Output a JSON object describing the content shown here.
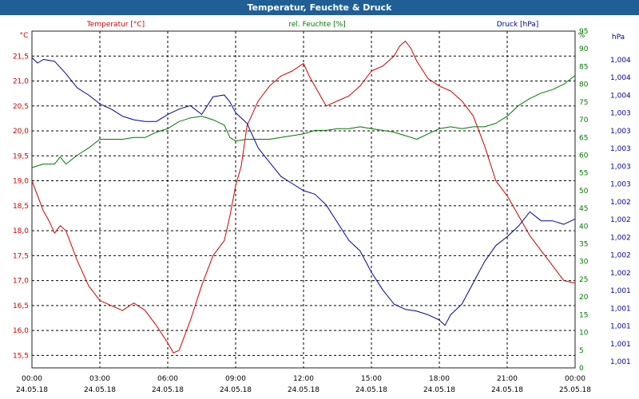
{
  "window": {
    "title": "Temperatur, Feuchte & Druck"
  },
  "chart_data": {
    "type": "line",
    "title": "Temperatur, Feuchte & Druck",
    "x_ticks": [
      {
        "time": "00:00",
        "date": "24.05.18"
      },
      {
        "time": "03:00",
        "date": "24.05.18"
      },
      {
        "time": "06:00",
        "date": "24.05.18"
      },
      {
        "time": "09:00",
        "date": "24.05.18"
      },
      {
        "time": "12:00",
        "date": "24.05.18"
      },
      {
        "time": "15:00",
        "date": "24.05.18"
      },
      {
        "time": "18:00",
        "date": "24.05.18"
      },
      {
        "time": "21:00",
        "date": "24.05.18"
      },
      {
        "time": "00:00",
        "date": "25.05.18"
      }
    ],
    "xlim_hours": [
      0,
      24
    ],
    "axes": {
      "temperature": {
        "label": "Temperatur [°C]",
        "unit": "°C",
        "color": "#cc0000",
        "ylim": [
          15.25,
          22.0
        ],
        "ticks": [
          "15,5",
          "16,0",
          "16,5",
          "17,0",
          "17,5",
          "18,0",
          "18,5",
          "19,0",
          "19,5",
          "20,0",
          "20,5",
          "21,0",
          "21,5"
        ]
      },
      "humidity": {
        "label": "rel. Feuchte [%]",
        "unit": "%",
        "color": "#007700",
        "ylim": [
          0,
          95
        ],
        "ticks": [
          "0",
          "5",
          "10",
          "15",
          "20",
          "25",
          "30",
          "35",
          "40",
          "45",
          "50",
          "55",
          "60",
          "65",
          "70",
          "75",
          "80",
          "85",
          "90",
          "95"
        ]
      },
      "pressure": {
        "label": "Druck [hPa]",
        "unit": "hPa",
        "color": "#000099",
        "ticks": [
          "1,001",
          "1,001",
          "1,001",
          "1,001",
          "1,001",
          "1,002",
          "1,002",
          "1,002",
          "1,002",
          "1,002",
          "1,003",
          "1,003",
          "1,003",
          "1,003",
          "1,003",
          "1,004",
          "1,004",
          "1,004"
        ]
      }
    },
    "grid": true,
    "grid_style": "dashed",
    "series": [
      {
        "name": "Temperatur [°C]",
        "axis": "temperature",
        "color": "#cc0000",
        "x": [
          0,
          0.25,
          0.5,
          0.75,
          1.0,
          1.25,
          1.5,
          1.75,
          2.0,
          2.5,
          3.0,
          3.5,
          4.0,
          4.5,
          5.0,
          5.5,
          6.0,
          6.25,
          6.5,
          7.0,
          7.5,
          8.0,
          8.5,
          8.75,
          9.0,
          9.25,
          9.5,
          10.0,
          10.5,
          11.0,
          11.5,
          12.0,
          12.25,
          12.5,
          13.0,
          13.5,
          14.0,
          14.5,
          15.0,
          15.5,
          16.0,
          16.25,
          16.5,
          16.75,
          17.0,
          17.5,
          18.0,
          18.5,
          19.0,
          19.5,
          20.0,
          20.5,
          21.0,
          21.5,
          22.0,
          22.5,
          23.0,
          23.5,
          24.0
        ],
        "values": [
          19.0,
          18.7,
          18.4,
          18.2,
          17.95,
          18.1,
          18.0,
          17.7,
          17.4,
          16.9,
          16.6,
          16.5,
          16.4,
          16.55,
          16.4,
          16.1,
          15.75,
          15.55,
          15.6,
          16.2,
          16.9,
          17.5,
          17.8,
          18.3,
          18.9,
          19.3,
          20.1,
          20.6,
          20.9,
          21.1,
          21.2,
          21.35,
          21.1,
          20.9,
          20.5,
          20.6,
          20.7,
          20.9,
          21.2,
          21.3,
          21.5,
          21.7,
          21.8,
          21.65,
          21.4,
          21.05,
          20.9,
          20.8,
          20.6,
          20.3,
          19.7,
          19.0,
          18.7,
          18.3,
          17.9,
          17.6,
          17.3,
          17.0,
          16.95
        ]
      },
      {
        "name": "rel. Feuchte [%]",
        "axis": "humidity",
        "color": "#007700",
        "x": [
          0,
          0.5,
          1.0,
          1.25,
          1.5,
          2.0,
          2.5,
          3.0,
          3.5,
          4.0,
          4.5,
          5.0,
          5.5,
          6.0,
          6.5,
          7.0,
          7.5,
          8.0,
          8.5,
          8.75,
          9.0,
          9.5,
          10.0,
          10.5,
          11.0,
          11.5,
          12.0,
          12.5,
          13.0,
          13.5,
          14.0,
          14.5,
          15.0,
          15.5,
          16.0,
          16.5,
          17.0,
          17.5,
          18.0,
          18.5,
          19.0,
          19.5,
          20.0,
          20.5,
          21.0,
          21.5,
          22.0,
          22.5,
          23.0,
          23.5,
          24.0
        ],
        "values": [
          56.5,
          57.5,
          57.5,
          59.5,
          57.5,
          60.0,
          62.0,
          64.5,
          64.5,
          64.5,
          65.0,
          65.0,
          66.5,
          67.5,
          69.5,
          70.5,
          71.0,
          70.0,
          68.5,
          65.0,
          64.0,
          64.5,
          64.5,
          64.5,
          65.0,
          65.5,
          66.0,
          67.0,
          67.0,
          67.5,
          67.5,
          68.0,
          67.5,
          67.0,
          66.5,
          65.5,
          64.5,
          66.0,
          67.5,
          68.0,
          67.5,
          68.0,
          68.0,
          69.0,
          71.0,
          74.0,
          76.0,
          77.5,
          78.5,
          80.0,
          82.5
        ]
      },
      {
        "name": "Druck [hPa]",
        "axis": "pressure",
        "color": "#000099",
        "x": [
          0,
          0.25,
          0.5,
          1.0,
          1.5,
          2.0,
          2.5,
          3.0,
          3.5,
          4.0,
          4.5,
          5.0,
          5.5,
          6.0,
          6.5,
          7.0,
          7.5,
          8.0,
          8.5,
          8.75,
          9.0,
          9.5,
          10.0,
          10.5,
          11.0,
          11.5,
          12.0,
          12.5,
          13.0,
          13.5,
          14.0,
          14.5,
          15.0,
          15.5,
          16.0,
          16.5,
          17.0,
          17.5,
          18.0,
          18.25,
          18.5,
          19.0,
          19.5,
          20.0,
          20.5,
          21.0,
          21.5,
          22.0,
          22.5,
          23.0,
          23.5,
          24.0
        ],
        "values": [
          87.5,
          86.0,
          87.0,
          86.5,
          83.0,
          79.0,
          77.0,
          74.5,
          73.0,
          71.0,
          70.0,
          69.5,
          69.5,
          71.5,
          73.0,
          74.0,
          71.5,
          76.5,
          77.0,
          75.0,
          72.0,
          69.0,
          62.0,
          58.0,
          54.0,
          52.0,
          50.0,
          49.0,
          46.0,
          41.0,
          36.0,
          33.0,
          27.0,
          22.0,
          18.0,
          16.5,
          16.0,
          15.0,
          13.5,
          12.0,
          15.0,
          18.0,
          24.0,
          30.0,
          34.5,
          37.0,
          40.0,
          44.0,
          41.5,
          41.5,
          40.5,
          42.0
        ]
      }
    ]
  }
}
